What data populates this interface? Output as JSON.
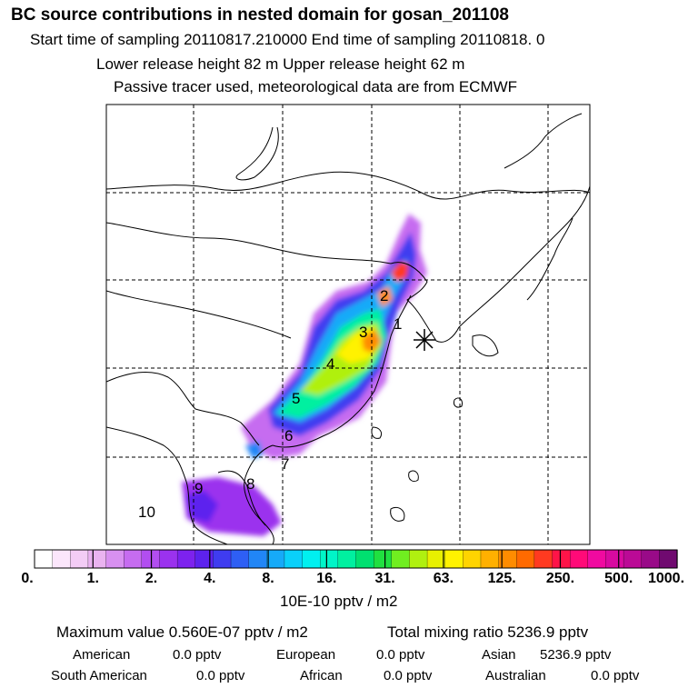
{
  "header": {
    "title": "BC  source contributions in nested domain for gosan_201108",
    "sampling_line": "Start time of sampling 20110817.210000     End time of sampling 20110818.     0",
    "release_line": "Lower release height   82 m          Upper release height   62 m",
    "tracer_line": "Passive tracer used, meteorological data are from ECMWF"
  },
  "map": {
    "receptor_marker": "asterisk-marker",
    "source_region_labels": [
      "1",
      "2",
      "3",
      "4",
      "5",
      "6",
      "7",
      "8",
      "9",
      "10"
    ]
  },
  "colorbar": {
    "tick_labels": [
      "0.",
      "1.",
      "2.",
      "4.",
      "8.",
      "16.",
      "31.",
      "63.",
      "125.",
      "250.",
      "500.",
      "1000."
    ],
    "unit_label": "10E-10 pptv / m2",
    "colors": [
      "#ffffff",
      "#fbe6fb",
      "#f3ccf5",
      "#eab3f0",
      "#d890f0",
      "#c66cf0",
      "#b24ef0",
      "#9b32ee",
      "#7d22ee",
      "#5d22ee",
      "#3f3cf0",
      "#2e5ff4",
      "#2186f6",
      "#16aaf8",
      "#0ad0fa",
      "#00f0f0",
      "#00f5c8",
      "#00f0a0",
      "#00e070",
      "#20e040",
      "#70ee20",
      "#b0f010",
      "#e8f000",
      "#fff200",
      "#ffd400",
      "#ffb000",
      "#ff8c00",
      "#ff6a00",
      "#ff3a20",
      "#ff1448",
      "#ff0a78",
      "#f00aa0",
      "#d80aa0",
      "#bb0a96",
      "#990a88",
      "#700a70"
    ]
  },
  "stats": {
    "maximum_value": "Maximum value  0.560E-07 pptv / m2",
    "total_mixing_ratio": "Total mixing ratio     5236.9 pptv"
  },
  "regions": [
    {
      "name": "American",
      "value": "0.0 pptv"
    },
    {
      "name": "European",
      "value": "0.0 pptv"
    },
    {
      "name": "Asian",
      "value": "5236.9 pptv"
    },
    {
      "name": "South American",
      "value": "0.0 pptv"
    },
    {
      "name": "African",
      "value": "0.0 pptv"
    },
    {
      "name": "Australian",
      "value": "0.0 pptv"
    }
  ]
}
